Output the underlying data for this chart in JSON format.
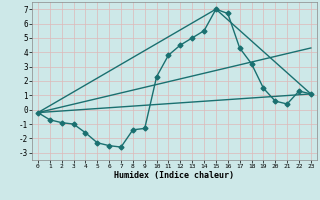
{
  "xlabel": "Humidex (Indice chaleur)",
  "bg_color": "#cde8e8",
  "grid_color": "#b8d8d8",
  "line_color": "#1a7070",
  "xlim": [
    -0.5,
    23.5
  ],
  "ylim": [
    -3.5,
    7.5
  ],
  "xticks": [
    0,
    1,
    2,
    3,
    4,
    5,
    6,
    7,
    8,
    9,
    10,
    11,
    12,
    13,
    14,
    15,
    16,
    17,
    18,
    19,
    20,
    21,
    22,
    23
  ],
  "yticks": [
    -3,
    -2,
    -1,
    0,
    1,
    2,
    3,
    4,
    5,
    6,
    7
  ],
  "series": [
    {
      "x": [
        0,
        1,
        2,
        3,
        4,
        5,
        6,
        7,
        8,
        9,
        10,
        11,
        12,
        13,
        14,
        15,
        16,
        17,
        18,
        19,
        20,
        21,
        22,
        23
      ],
      "y": [
        -0.2,
        -0.7,
        -0.9,
        -1.0,
        -1.6,
        -2.3,
        -2.5,
        -2.6,
        -1.4,
        -1.3,
        2.3,
        3.8,
        4.5,
        5.0,
        5.5,
        7.0,
        6.7,
        4.3,
        3.2,
        1.5,
        0.6,
        0.4,
        1.3,
        1.1
      ]
    },
    {
      "x": [
        0,
        23
      ],
      "y": [
        -0.2,
        1.1
      ]
    },
    {
      "x": [
        0,
        15,
        23
      ],
      "y": [
        -0.2,
        7.0,
        1.1
      ]
    },
    {
      "x": [
        0,
        23
      ],
      "y": [
        -0.2,
        4.3
      ]
    }
  ],
  "marker": "D",
  "markersize": 2.5,
  "linewidth": 1.0
}
